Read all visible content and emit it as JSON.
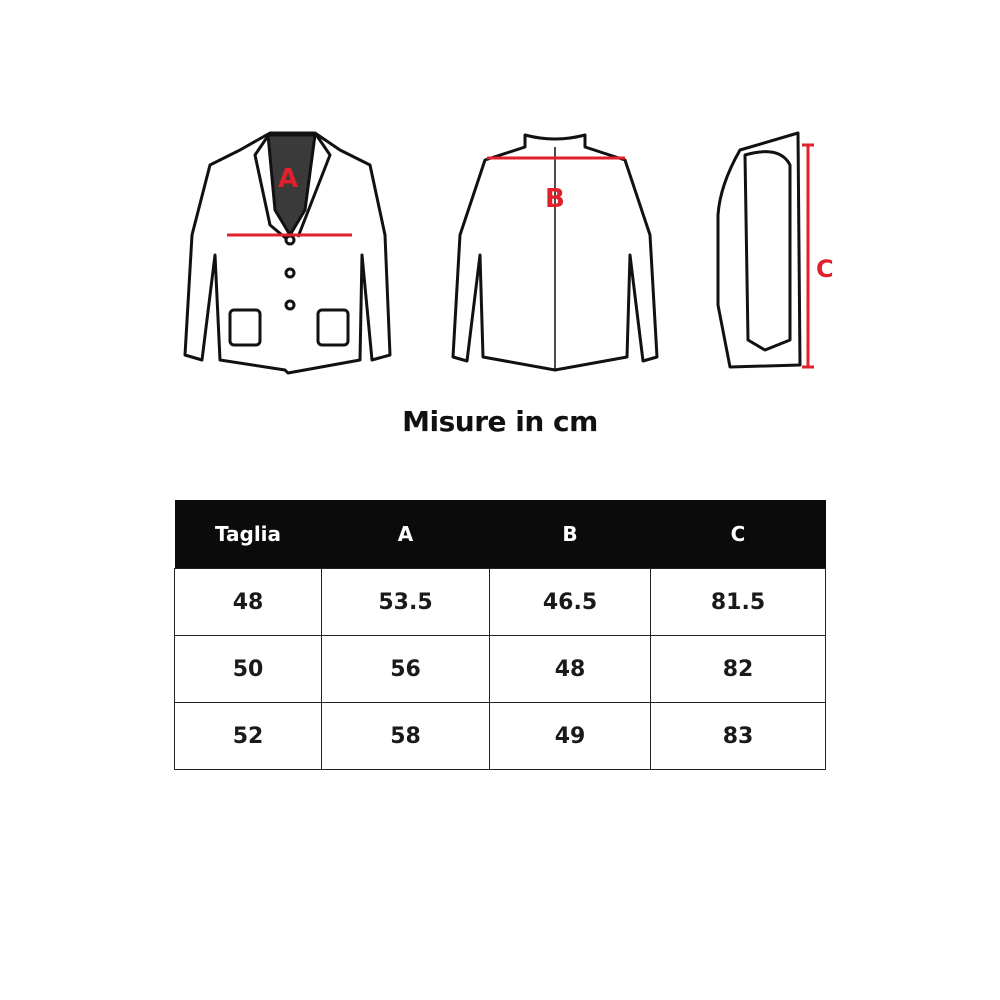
{
  "diagram": {
    "front_label": "A",
    "back_label": "B",
    "side_label": "C",
    "accent_color": "#e0202a"
  },
  "title": "Misure in cm",
  "table": {
    "headers": [
      "Taglia",
      "A",
      "B",
      "C"
    ],
    "rows": [
      [
        "48",
        "53.5",
        "46.5",
        "81.5"
      ],
      [
        "50",
        "56",
        "48",
        "82"
      ],
      [
        "52",
        "58",
        "49",
        "83"
      ]
    ]
  }
}
